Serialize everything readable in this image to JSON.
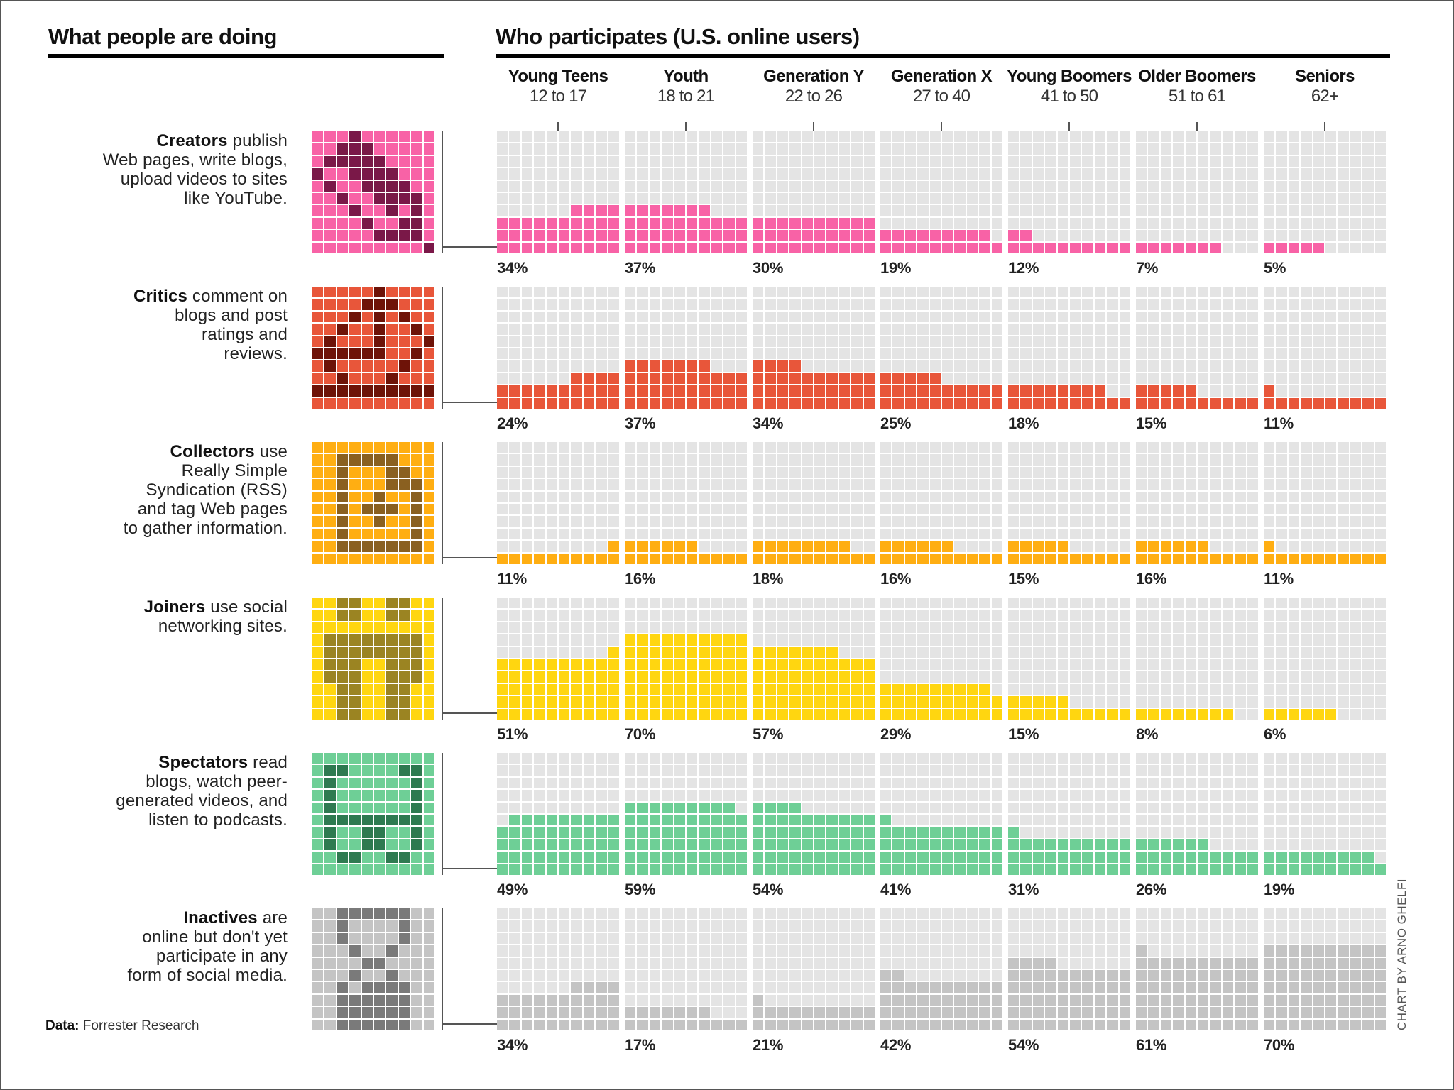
{
  "chart_data": {
    "type": "waffle",
    "title_left": "What people are doing",
    "title_right": "Who participates (U.S. online users)",
    "columns": [
      {
        "name": "Young Teens",
        "age": "12 to 17"
      },
      {
        "name": "Youth",
        "age": "18 to 21"
      },
      {
        "name": "Generation Y",
        "age": "22 to 26"
      },
      {
        "name": "Generation X",
        "age": "27 to 40"
      },
      {
        "name": "Young Boomers",
        "age": "41 to 50"
      },
      {
        "name": "Older Boomers",
        "age": "51 to 61"
      },
      {
        "name": "Seniors",
        "age": "62+"
      }
    ],
    "series": [
      {
        "name": "Creators",
        "desc_rest": " publish Web pages, write blogs, upload videos to sites like YouTube.",
        "desc_lines": [
          "Creators| publish",
          "Web pages, write blogs,",
          "upload videos to sites",
          "like YouTube."
        ],
        "color": "#f862a6",
        "dark": "#7a1848",
        "icon": "pencil-icon",
        "values": [
          34,
          37,
          30,
          19,
          12,
          7,
          5
        ]
      },
      {
        "name": "Critics",
        "desc_lines": [
          "Critics| comment on",
          "blogs and post",
          "ratings and",
          "reviews."
        ],
        "color": "#e8563a",
        "dark": "#6e1308",
        "icon": "scale-icon",
        "values": [
          24,
          37,
          34,
          25,
          18,
          15,
          11
        ]
      },
      {
        "name": "Collectors",
        "desc_lines": [
          "Collectors| use",
          "Really Simple",
          "Syndication (RSS)",
          "and tag Web pages",
          "to gather information."
        ],
        "color": "#ffae12",
        "dark": "#8a6020",
        "icon": "rss-tag-icon",
        "values": [
          11,
          16,
          18,
          16,
          15,
          16,
          11
        ]
      },
      {
        "name": "Joiners",
        "desc_lines": [
          "Joiners| use social",
          "networking sites."
        ],
        "color": "#ffd610",
        "dark": "#9b8422",
        "icon": "people-icon",
        "values": [
          51,
          70,
          57,
          29,
          15,
          8,
          6
        ]
      },
      {
        "name": "Spectators",
        "desc_lines": [
          "Spectators| read",
          "blogs, watch peer-",
          "generated videos, and",
          "listen to podcasts."
        ],
        "color": "#6ecf96",
        "dark": "#2e7a50",
        "icon": "headphones-icon",
        "values": [
          49,
          59,
          54,
          41,
          31,
          26,
          19
        ]
      },
      {
        "name": "Inactives",
        "desc_lines": [
          "Inactives| are",
          "online but don't yet",
          "participate in any",
          "form of social media."
        ],
        "color": "#c4c4c4",
        "dark": "#7a7a7a",
        "icon": "hourglass-icon",
        "values": [
          34,
          17,
          21,
          42,
          54,
          61,
          70
        ]
      }
    ],
    "unit": "percent",
    "empty_color": "#e4e4e4"
  },
  "icons": {
    "pencil-icon": [
      "...X......",
      "..XXX.....",
      ".XXXXX....",
      "X..XXXX...",
      ".X..XXXX..",
      "..X..XXXX.",
      "...X..X.X.",
      "....X..XX.",
      ".....XXXX.",
      ".........X"
    ],
    "scale-icon": [
      ".....X....",
      "....XXX...",
      "...X.X.X..",
      "..X..X..X.",
      ".X...X...X",
      "XXXXXX..X.",
      ".X.....X..",
      "..X...X...",
      "XXXXXXXXXX",
      ".........."
    ],
    "rss-tag-icon": [
      "..........",
      "..XXXXX...",
      "..X...XX..",
      "..X...XXX.",
      "..X..X..X.",
      "..X.XXX.X.",
      "..X..X..X.",
      "..X.....X.",
      "..XXXXXXX.",
      ".........."
    ],
    "people-icon": [
      "..XX..XX..",
      "..XX..XX..",
      "..........",
      ".XXXXXXXX.",
      ".XXXXXXXX.",
      ".XXX..XXX.",
      ".XXX..XXX.",
      "..XX..XX..",
      "..XX..XX..",
      "..XX..XX.."
    ],
    "headphones-icon": [
      "..........",
      ".XX....XX.",
      ".X......X.",
      ".X......X.",
      ".X......X.",
      ".XXXXXXXX.",
      ".X..XX..X.",
      ".X..XX..X.",
      "..XX..XX..",
      ".........."
    ],
    "hourglass-icon": [
      "..XXXXXX..",
      "..X....X..",
      "..X....X..",
      "...X..X...",
      "....XX....",
      "...X..X...",
      "..X.XXXX..",
      "..XXXXXX..",
      "..XXXXXX..",
      "..XXXXXX.."
    ]
  },
  "footer": {
    "source_label": "Data:",
    "source_value": " Forrester Research",
    "credit": "CHART BY ARNO GHELFI"
  }
}
